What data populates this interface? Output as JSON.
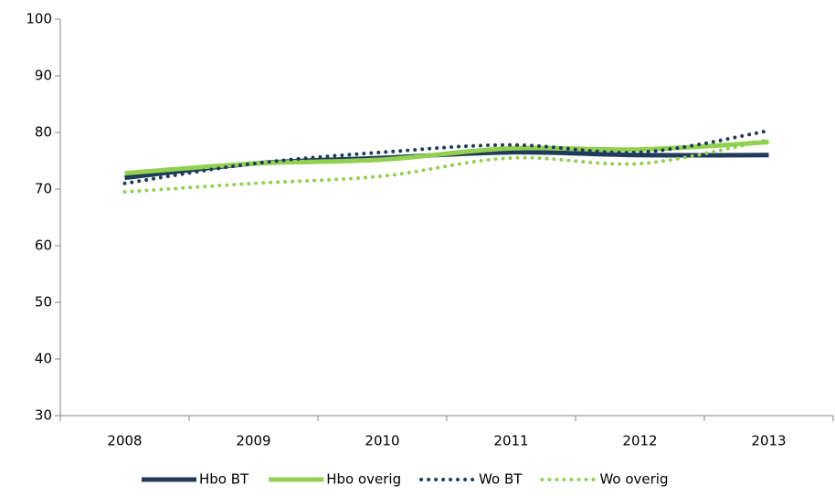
{
  "chart_data": {
    "type": "line",
    "categories": [
      "2008",
      "2009",
      "2010",
      "2011",
      "2012",
      "2013"
    ],
    "series": [
      {
        "name": "Hbo BT",
        "color": "#1f3a5a",
        "style": "solid",
        "values": [
          72,
          74.5,
          75.5,
          76.5,
          76,
          76
        ]
      },
      {
        "name": "Hbo overig",
        "color": "#92d050",
        "style": "solid",
        "values": [
          72.8,
          74.5,
          75.2,
          77.2,
          77,
          78.3
        ]
      },
      {
        "name": "Wo BT",
        "color": "#1f3a5a",
        "style": "dotted",
        "values": [
          71,
          74.5,
          76.5,
          77.8,
          76.5,
          80.3
        ]
      },
      {
        "name": "Wo overig",
        "color": "#92d050",
        "style": "dotted",
        "values": [
          69.5,
          71,
          72.3,
          75.5,
          74.5,
          78.7
        ]
      }
    ],
    "ylim": [
      30,
      100
    ],
    "yticks": [
      30,
      40,
      50,
      60,
      70,
      80,
      90,
      100
    ],
    "legend": "bottom",
    "grid": false
  }
}
